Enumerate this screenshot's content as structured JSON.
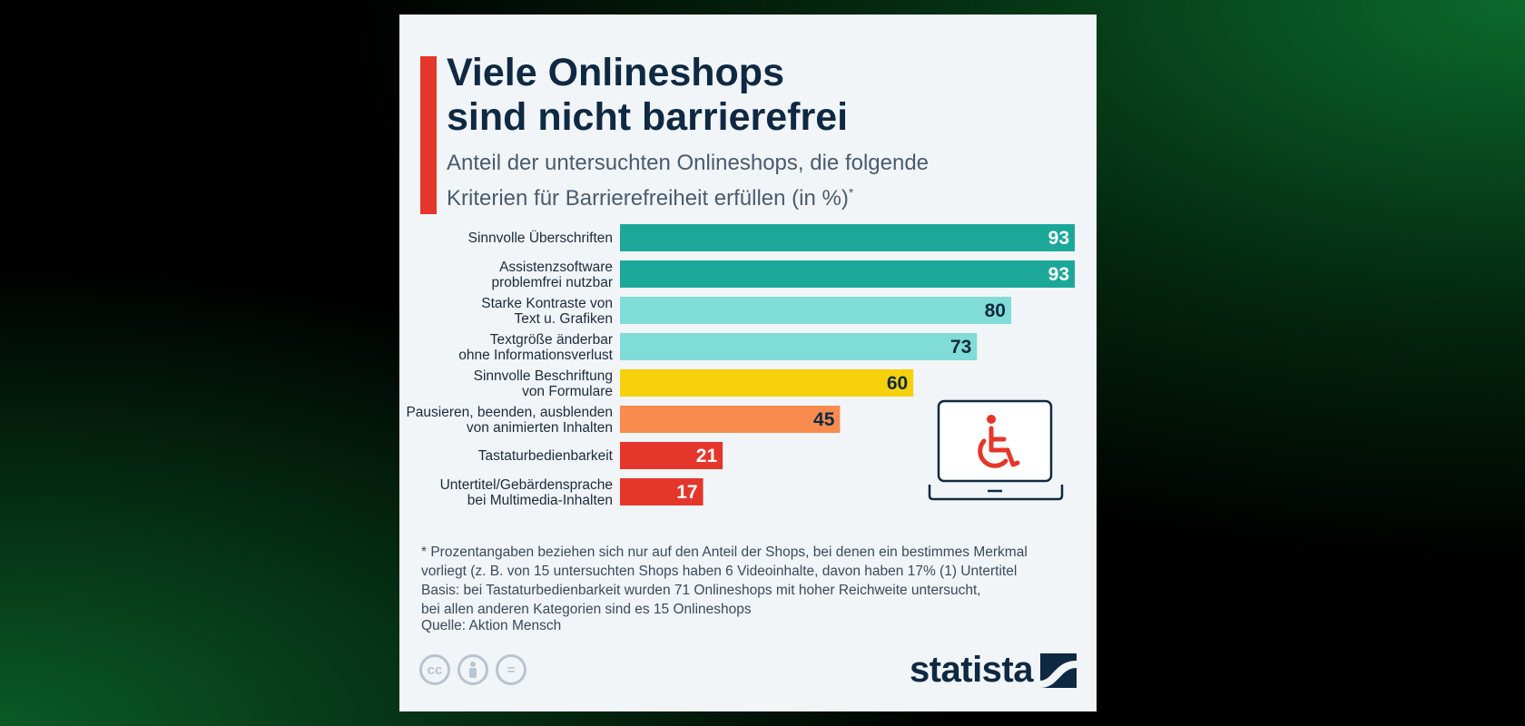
{
  "header": {
    "title": "Viele Onlineshops\nsind nicht barrierefrei",
    "subtitle": "Anteil der untersuchten Onlineshops, die folgende\nKriterien für Barrierefreiheit erfüllen (in %)",
    "subtitle_mark": "*"
  },
  "chart_data": {
    "type": "bar",
    "orientation": "horizontal",
    "title": "Viele Onlineshops sind nicht barrierefrei",
    "categories": [
      [
        "Sinnvolle Überschriften"
      ],
      [
        "Assistenzsoftware",
        "problemfrei nutzbar"
      ],
      [
        "Starke Kontraste von",
        "Text u. Grafiken"
      ],
      [
        "Textgröße änderbar",
        "ohne Informationsverlust"
      ],
      [
        "Sinnvolle Beschriftung",
        "von Formulare"
      ],
      [
        "Pausieren, beenden, ausblenden",
        "von animierten Inhalten"
      ],
      [
        "Tastaturbedienbarkeit"
      ],
      [
        "Untertitel/Gebärdensprache",
        "bei Multimedia-Inhalten"
      ]
    ],
    "values": [
      93,
      93,
      80,
      73,
      60,
      45,
      21,
      17
    ],
    "colors": [
      "#1ba898",
      "#1ba898",
      "#7fdcd6",
      "#7fdcd6",
      "#f6d10c",
      "#f98b4e",
      "#e5362b",
      "#e5362b"
    ],
    "label_colors": [
      "#ffffff",
      "#ffffff",
      "#0f2942",
      "#0f2942",
      "#0f2942",
      "#0f2942",
      "#ffffff",
      "#ffffff"
    ],
    "xlim": [
      0,
      93
    ],
    "unit": "%",
    "grid": false,
    "legend": false
  },
  "icon": {
    "name": "wheelchair-laptop-icon",
    "color": "#e5362b"
  },
  "footer": {
    "note": "* Prozentangaben beziehen sich nur auf den Anteil der Shops, bei denen ein bestimmes Merkmal\n   vorliegt (z. B. von 15 untersuchten Shops haben 6 Videoinhalte, davon haben 17% (1) Untertitel\nBasis: bei Tastaturbedienbarkeit wurden 71 Onlineshops mit hoher Reichweite untersucht,\nbei allen anderen Kategorien sind es 15 Onlineshops",
    "source": "Quelle: Aktion Mensch",
    "license_icons": [
      "cc",
      "by",
      "nd"
    ],
    "cc_text": "cc",
    "nd_text": "=",
    "brand": "statista"
  }
}
